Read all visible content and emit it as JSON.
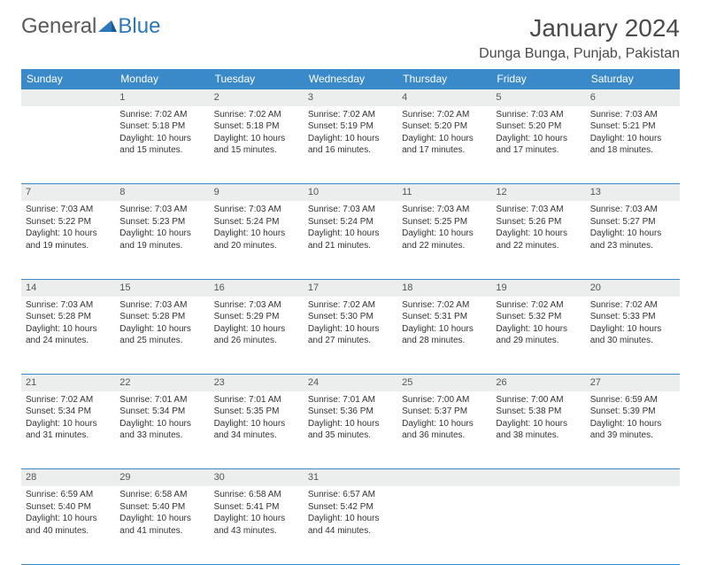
{
  "brand": {
    "part1": "General",
    "part2": "Blue"
  },
  "title": "January 2024",
  "location": "Dunga Bunga, Punjab, Pakistan",
  "colors": {
    "header_bg": "#3a8ac9",
    "header_text": "#ffffff",
    "daynum_bg": "#eceded",
    "border": "#3a8ac9",
    "text": "#333333"
  },
  "weekdays": [
    "Sunday",
    "Monday",
    "Tuesday",
    "Wednesday",
    "Thursday",
    "Friday",
    "Saturday"
  ],
  "weeks": [
    [
      null,
      {
        "n": "1",
        "sr": "7:02 AM",
        "ss": "5:18 PM",
        "dl": "10 hours and 15 minutes."
      },
      {
        "n": "2",
        "sr": "7:02 AM",
        "ss": "5:18 PM",
        "dl": "10 hours and 15 minutes."
      },
      {
        "n": "3",
        "sr": "7:02 AM",
        "ss": "5:19 PM",
        "dl": "10 hours and 16 minutes."
      },
      {
        "n": "4",
        "sr": "7:02 AM",
        "ss": "5:20 PM",
        "dl": "10 hours and 17 minutes."
      },
      {
        "n": "5",
        "sr": "7:03 AM",
        "ss": "5:20 PM",
        "dl": "10 hours and 17 minutes."
      },
      {
        "n": "6",
        "sr": "7:03 AM",
        "ss": "5:21 PM",
        "dl": "10 hours and 18 minutes."
      }
    ],
    [
      {
        "n": "7",
        "sr": "7:03 AM",
        "ss": "5:22 PM",
        "dl": "10 hours and 19 minutes."
      },
      {
        "n": "8",
        "sr": "7:03 AM",
        "ss": "5:23 PM",
        "dl": "10 hours and 19 minutes."
      },
      {
        "n": "9",
        "sr": "7:03 AM",
        "ss": "5:24 PM",
        "dl": "10 hours and 20 minutes."
      },
      {
        "n": "10",
        "sr": "7:03 AM",
        "ss": "5:24 PM",
        "dl": "10 hours and 21 minutes."
      },
      {
        "n": "11",
        "sr": "7:03 AM",
        "ss": "5:25 PM",
        "dl": "10 hours and 22 minutes."
      },
      {
        "n": "12",
        "sr": "7:03 AM",
        "ss": "5:26 PM",
        "dl": "10 hours and 22 minutes."
      },
      {
        "n": "13",
        "sr": "7:03 AM",
        "ss": "5:27 PM",
        "dl": "10 hours and 23 minutes."
      }
    ],
    [
      {
        "n": "14",
        "sr": "7:03 AM",
        "ss": "5:28 PM",
        "dl": "10 hours and 24 minutes."
      },
      {
        "n": "15",
        "sr": "7:03 AM",
        "ss": "5:28 PM",
        "dl": "10 hours and 25 minutes."
      },
      {
        "n": "16",
        "sr": "7:03 AM",
        "ss": "5:29 PM",
        "dl": "10 hours and 26 minutes."
      },
      {
        "n": "17",
        "sr": "7:02 AM",
        "ss": "5:30 PM",
        "dl": "10 hours and 27 minutes."
      },
      {
        "n": "18",
        "sr": "7:02 AM",
        "ss": "5:31 PM",
        "dl": "10 hours and 28 minutes."
      },
      {
        "n": "19",
        "sr": "7:02 AM",
        "ss": "5:32 PM",
        "dl": "10 hours and 29 minutes."
      },
      {
        "n": "20",
        "sr": "7:02 AM",
        "ss": "5:33 PM",
        "dl": "10 hours and 30 minutes."
      }
    ],
    [
      {
        "n": "21",
        "sr": "7:02 AM",
        "ss": "5:34 PM",
        "dl": "10 hours and 31 minutes."
      },
      {
        "n": "22",
        "sr": "7:01 AM",
        "ss": "5:34 PM",
        "dl": "10 hours and 33 minutes."
      },
      {
        "n": "23",
        "sr": "7:01 AM",
        "ss": "5:35 PM",
        "dl": "10 hours and 34 minutes."
      },
      {
        "n": "24",
        "sr": "7:01 AM",
        "ss": "5:36 PM",
        "dl": "10 hours and 35 minutes."
      },
      {
        "n": "25",
        "sr": "7:00 AM",
        "ss": "5:37 PM",
        "dl": "10 hours and 36 minutes."
      },
      {
        "n": "26",
        "sr": "7:00 AM",
        "ss": "5:38 PM",
        "dl": "10 hours and 38 minutes."
      },
      {
        "n": "27",
        "sr": "6:59 AM",
        "ss": "5:39 PM",
        "dl": "10 hours and 39 minutes."
      }
    ],
    [
      {
        "n": "28",
        "sr": "6:59 AM",
        "ss": "5:40 PM",
        "dl": "10 hours and 40 minutes."
      },
      {
        "n": "29",
        "sr": "6:58 AM",
        "ss": "5:40 PM",
        "dl": "10 hours and 41 minutes."
      },
      {
        "n": "30",
        "sr": "6:58 AM",
        "ss": "5:41 PM",
        "dl": "10 hours and 43 minutes."
      },
      {
        "n": "31",
        "sr": "6:57 AM",
        "ss": "5:42 PM",
        "dl": "10 hours and 44 minutes."
      },
      null,
      null,
      null
    ]
  ],
  "labels": {
    "sunrise": "Sunrise:",
    "sunset": "Sunset:",
    "daylight": "Daylight:"
  }
}
